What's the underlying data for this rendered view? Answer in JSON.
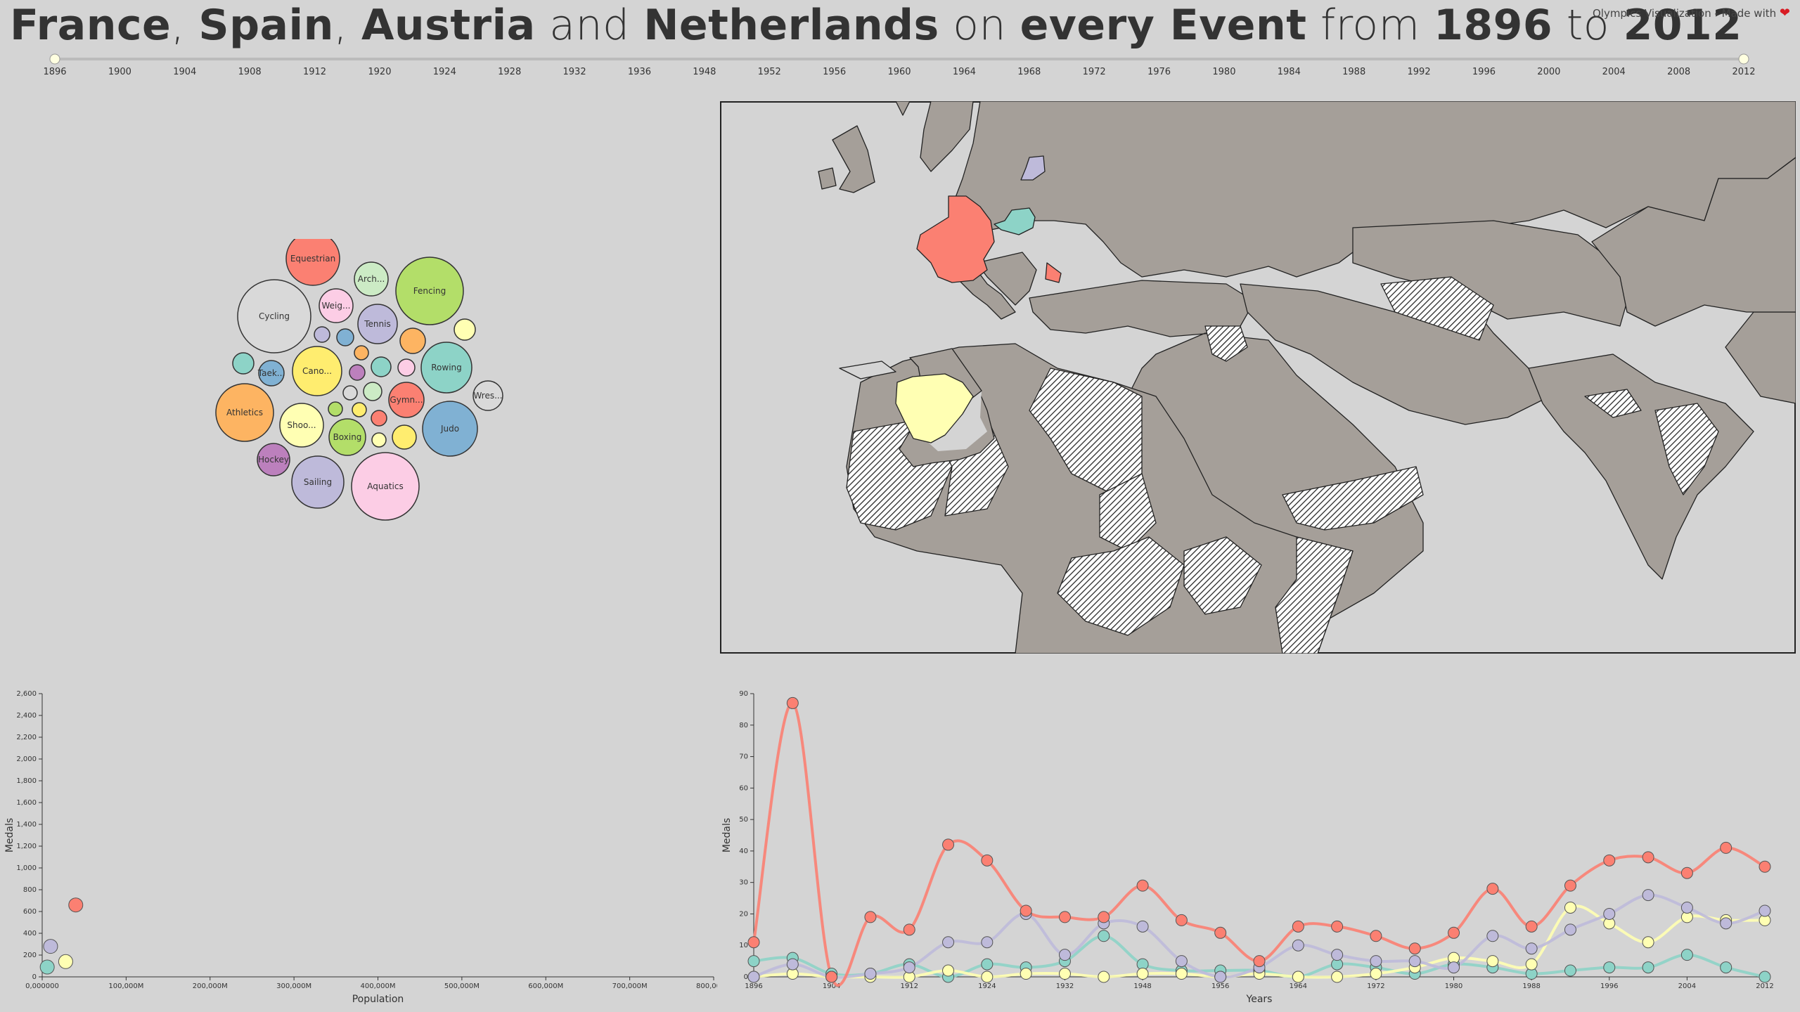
{
  "title": {
    "parts": [
      {
        "t": "France",
        "b": true
      },
      {
        "t": ", ",
        "b": false
      },
      {
        "t": "Spain",
        "b": true
      },
      {
        "t": ", ",
        "b": false
      },
      {
        "t": "Austria",
        "b": true
      },
      {
        "t": " and ",
        "b": false
      },
      {
        "t": "Netherlands",
        "b": true
      },
      {
        "t": " on ",
        "b": false
      },
      {
        "t": "every Event",
        "b": true
      },
      {
        "t": " from ",
        "b": false
      },
      {
        "t": "1896",
        "b": true
      },
      {
        "t": " to ",
        "b": false
      },
      {
        "t": "2012",
        "b": true
      }
    ]
  },
  "credit": {
    "text": "Olympics Visualization - Made with",
    "icon": "heart-icon"
  },
  "timeline": {
    "years": [
      "1896",
      "1900",
      "1904",
      "1908",
      "1912",
      "1920",
      "1924",
      "1928",
      "1932",
      "1936",
      "1948",
      "1952",
      "1956",
      "1960",
      "1964",
      "1968",
      "1972",
      "1976",
      "1980",
      "1984",
      "1988",
      "1992",
      "1996",
      "2000",
      "2004",
      "2008",
      "2012"
    ],
    "selected_start": "1896",
    "selected_end": "2012"
  },
  "countries": [
    {
      "name": "France",
      "color": "#fb8072"
    },
    {
      "name": "Spain",
      "color": "#ffffb3"
    },
    {
      "name": "Austria",
      "color": "#8dd3c7"
    },
    {
      "name": "Netherlands",
      "color": "#bebada"
    }
  ],
  "bubbles": [
    {
      "label": "Equestrian",
      "color": "#fb8072"
    },
    {
      "label": "Arch...",
      "color": "#ccebc5"
    },
    {
      "label": "Fencing",
      "color": "#b3de69"
    },
    {
      "label": "Cycling",
      "color": "#d9d9d9"
    },
    {
      "label": "Weig...",
      "color": "#fccde5"
    },
    {
      "label": "Tennis",
      "color": "#bebada"
    },
    {
      "label": "",
      "color": "#bebada"
    },
    {
      "label": "",
      "color": "#80b1d3"
    },
    {
      "label": "",
      "color": "#fdb462"
    },
    {
      "label": "",
      "color": "#fdb462"
    },
    {
      "label": "",
      "color": "#ffffb3"
    },
    {
      "label": "",
      "color": "#8dd3c7"
    },
    {
      "label": "Taek...",
      "color": "#80b1d3"
    },
    {
      "label": "Cano...",
      "color": "#ffed6f"
    },
    {
      "label": "",
      "color": "#bc80bd"
    },
    {
      "label": "",
      "color": "#8dd3c7"
    },
    {
      "label": "",
      "color": "#fccde5"
    },
    {
      "label": "Rowing",
      "color": "#8dd3c7"
    },
    {
      "label": "Wres...",
      "color": "#d9d9d9"
    },
    {
      "label": "",
      "color": "#d9d9d9"
    },
    {
      "label": "",
      "color": "#ccebc5"
    },
    {
      "label": "Gymn...",
      "color": "#fb8072"
    },
    {
      "label": "Athletics",
      "color": "#fdb462"
    },
    {
      "label": "Shoo...",
      "color": "#ffffb3"
    },
    {
      "label": "",
      "color": "#b3de69"
    },
    {
      "label": "",
      "color": "#ffed6f"
    },
    {
      "label": "",
      "color": "#fb8072"
    },
    {
      "label": "Boxing",
      "color": "#b3de69"
    },
    {
      "label": "",
      "color": "#ffffb3"
    },
    {
      "label": "",
      "color": "#ffed6f"
    },
    {
      "label": "Judo",
      "color": "#80b1d3"
    },
    {
      "label": "Hockey",
      "color": "#bc80bd"
    },
    {
      "label": "Sailing",
      "color": "#bebada"
    },
    {
      "label": "Aquatics",
      "color": "#fccde5"
    }
  ],
  "map": {
    "land": "#a59f99",
    "sea": "#d4d4d4",
    "border": "#222222"
  },
  "scatter": {
    "xlabel": "Population",
    "ylabel": "Medals",
    "xticks": [
      "0,000000",
      "100,000M",
      "200,000M",
      "300,000M",
      "400,000M",
      "500,000M",
      "600,000M",
      "700,000M",
      "800,000M"
    ],
    "yticks": [
      "0",
      "200",
      "400",
      "600",
      "800",
      "1,000",
      "1,200",
      "1,400",
      "1,600",
      "1,800",
      "2,000",
      "2,200",
      "2,400",
      "2,600"
    ],
    "xlim": [
      0,
      800
    ],
    "ylim": [
      0,
      2600
    ],
    "points": [
      {
        "country": "France",
        "population_m": 40,
        "medals": 660
      },
      {
        "country": "Netherlands",
        "population_m": 10,
        "medals": 280
      },
      {
        "country": "Spain",
        "population_m": 28,
        "medals": 140
      },
      {
        "country": "Austria",
        "population_m": 6,
        "medals": 90
      }
    ]
  },
  "chart_data": {
    "type": "line",
    "xlabel": "Years",
    "ylabel": "Medals",
    "ylim": [
      0,
      90
    ],
    "yticks": [
      "0",
      "10",
      "20",
      "30",
      "40",
      "50",
      "60",
      "70",
      "80",
      "90"
    ],
    "xticks": [
      "1896",
      "1904",
      "1912",
      "1924",
      "1932",
      "1948",
      "1956",
      "1964",
      "1972",
      "1980",
      "1988",
      "1996",
      "2004",
      "2012"
    ],
    "x": [
      "1896",
      "1900",
      "1904",
      "1908",
      "1912",
      "1920",
      "1924",
      "1928",
      "1932",
      "1936",
      "1948",
      "1952",
      "1956",
      "1960",
      "1964",
      "1968",
      "1972",
      "1976",
      "1980",
      "1984",
      "1988",
      "1992",
      "1996",
      "2000",
      "2004",
      "2008",
      "2012"
    ],
    "series": [
      {
        "name": "France",
        "color": "#fb8072",
        "values": [
          11,
          87,
          0,
          19,
          15,
          42,
          37,
          21,
          19,
          19,
          29,
          18,
          14,
          5,
          16,
          16,
          13,
          9,
          14,
          28,
          16,
          29,
          37,
          38,
          33,
          41,
          35
        ]
      },
      {
        "name": "Netherlands",
        "color": "#bebada",
        "values": [
          0,
          4,
          0,
          1,
          3,
          11,
          11,
          20,
          7,
          17,
          16,
          5,
          0,
          3,
          10,
          7,
          5,
          5,
          3,
          13,
          9,
          15,
          20,
          26,
          22,
          17,
          21
        ]
      },
      {
        "name": "Spain",
        "color": "#ffffb3",
        "values": [
          0,
          1,
          0,
          0,
          0,
          2,
          0,
          1,
          1,
          0,
          1,
          1,
          0,
          1,
          0,
          0,
          1,
          3,
          6,
          5,
          4,
          22,
          17,
          11,
          19,
          18,
          18
        ]
      },
      {
        "name": "Austria",
        "color": "#8dd3c7",
        "values": [
          5,
          6,
          1,
          1,
          4,
          0,
          4,
          3,
          5,
          13,
          4,
          2,
          2,
          2,
          0,
          4,
          3,
          1,
          4,
          3,
          1,
          2,
          3,
          3,
          7,
          3,
          0
        ]
      }
    ]
  }
}
